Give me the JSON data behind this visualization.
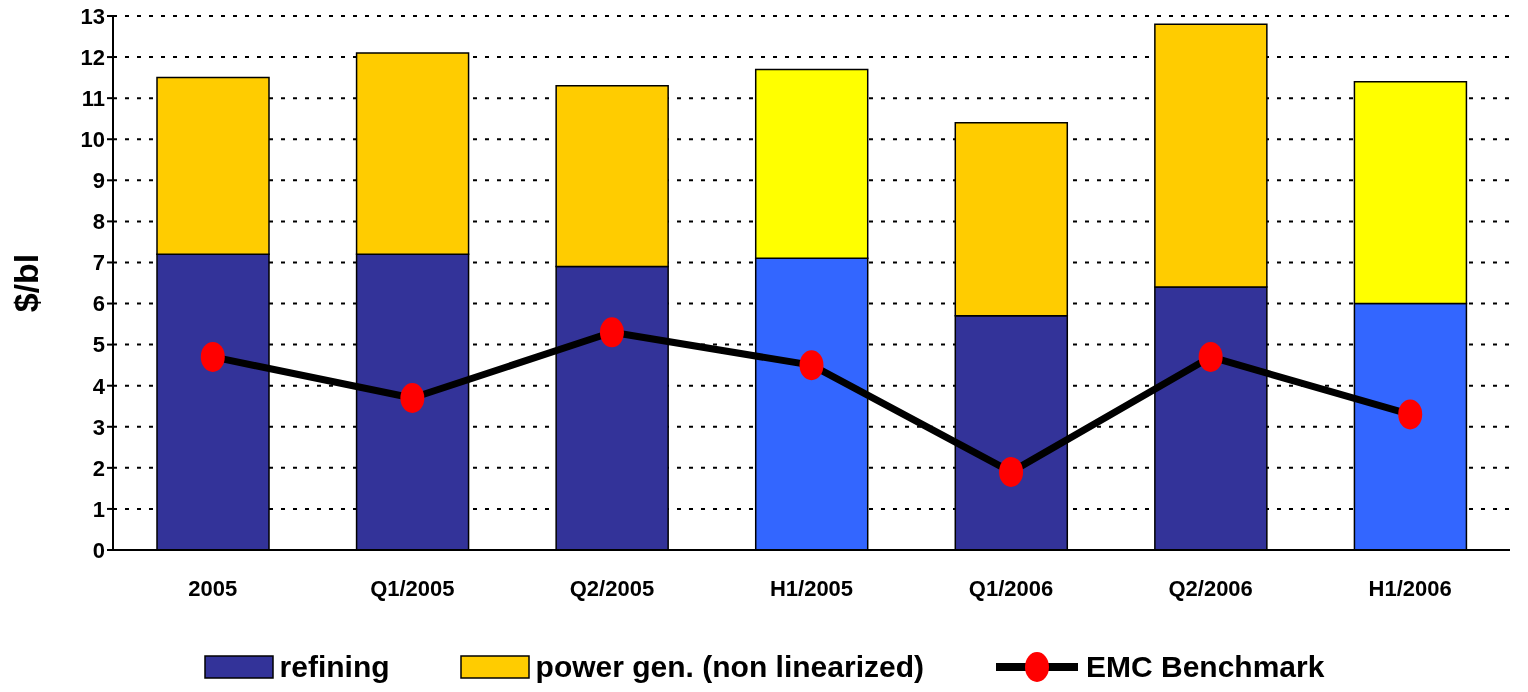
{
  "chart_data": {
    "type": "bar",
    "stacked": true,
    "ylabel": "$/bl",
    "categories": [
      "2005",
      "Q1/2005",
      "Q2/2005",
      "H1/2005",
      "Q1/2006",
      "Q2/2006",
      "H1/2006"
    ],
    "series": [
      {
        "name": "refining",
        "color": "#333399",
        "colors": [
          "#333399",
          "#333399",
          "#333399",
          "#3366ff",
          "#333399",
          "#333399",
          "#3366ff"
        ],
        "values": [
          7.2,
          7.2,
          6.9,
          7.1,
          5.7,
          6.4,
          6.0
        ]
      },
      {
        "name": "power gen. (non linearized)",
        "color": "#ffcc00",
        "colors": [
          "#ffcc00",
          "#ffcc00",
          "#ffcc00",
          "#ffff00",
          "#ffcc00",
          "#ffcc00",
          "#ffff00"
        ],
        "values": [
          4.3,
          4.9,
          4.4,
          4.6,
          4.7,
          6.4,
          5.4
        ]
      },
      {
        "name": "EMC Benchmark",
        "type": "line",
        "color": "#000000",
        "colors": [
          "#ff0000",
          "#ff0000",
          "#ff0000",
          "#ff0000",
          "#ff0000",
          "#ff0000",
          "#ff0000"
        ],
        "values": [
          4.7,
          3.7,
          5.3,
          4.5,
          1.9,
          4.7,
          3.3
        ]
      }
    ],
    "ylim": [
      0,
      13
    ],
    "yticks": [
      0,
      1,
      2,
      3,
      4,
      5,
      6,
      7,
      8,
      9,
      10,
      11,
      12,
      13
    ],
    "grid": "y",
    "legend": "bottom",
    "marker": "circle",
    "line_style": "solid"
  }
}
